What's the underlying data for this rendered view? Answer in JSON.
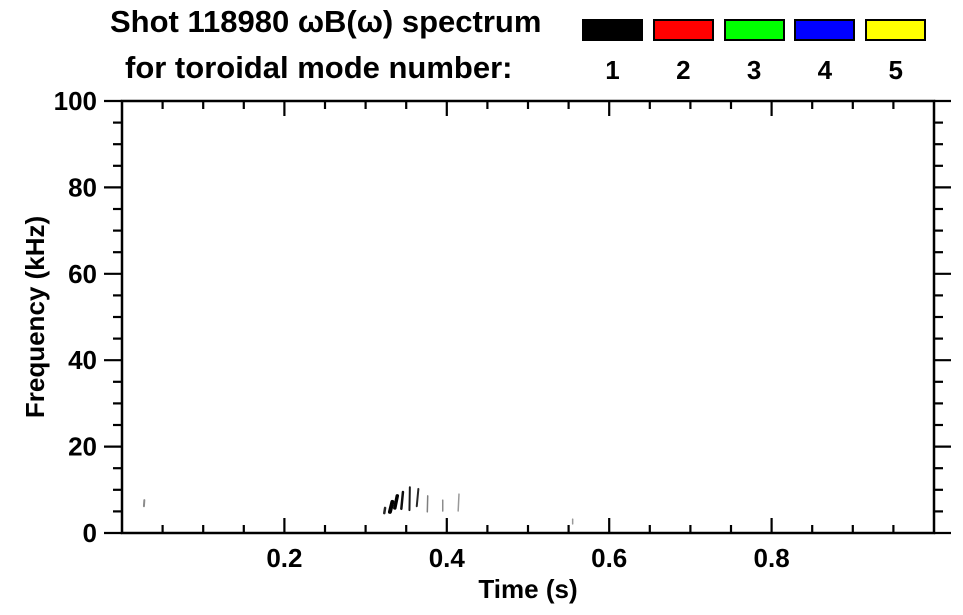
{
  "figure": {
    "title_line1": "Shot 118980 ωB(ω) spectrum",
    "title_line2": "for toroidal mode number:"
  },
  "legend": {
    "position": "top-right",
    "items": [
      {
        "label": "1",
        "color": "#000000"
      },
      {
        "label": "2",
        "color": "#ff0000"
      },
      {
        "label": "3",
        "color": "#00ff00"
      },
      {
        "label": "4",
        "color": "#0000ff"
      },
      {
        "label": "5",
        "color": "#ffff00"
      }
    ]
  },
  "chart_data": {
    "type": "scatter",
    "subtype": "mode-spectrogram",
    "title": "Shot 118980 ωB(ω) spectrum for toroidal mode number: 1 2 3 4 5",
    "xlabel": "Time (s)",
    "ylabel": "Frequency (kHz)",
    "xlim": [
      0,
      1.0
    ],
    "ylim": [
      0,
      100
    ],
    "grid": false,
    "frame_color": "#000000",
    "background": "#ffffff",
    "x_major_ticks": [
      {
        "value": 0.2,
        "label": "0.2"
      },
      {
        "value": 0.4,
        "label": "0.4"
      },
      {
        "value": 0.6,
        "label": "0.6"
      },
      {
        "value": 0.8,
        "label": "0.8"
      }
    ],
    "x_minor_step": 0.05,
    "y_major_ticks": [
      {
        "value": 0,
        "label": "0"
      },
      {
        "value": 20,
        "label": "20"
      },
      {
        "value": 40,
        "label": "40"
      },
      {
        "value": 60,
        "label": "60"
      },
      {
        "value": 80,
        "label": "80"
      },
      {
        "value": 100,
        "label": "100"
      }
    ],
    "y_minor_step": 5,
    "series": [
      {
        "name": "n=1",
        "color": "#000000",
        "points": [
          {
            "t": 0.027,
            "f_lo": 6.2,
            "f_hi": 7.6,
            "drift": 0.0005,
            "weight": 2,
            "amp": 0.45
          },
          {
            "t": 0.323,
            "f_lo": 4.6,
            "f_hi": 5.8,
            "drift": 0.001,
            "weight": 2.5,
            "amp": 0.85
          },
          {
            "t": 0.33,
            "f_lo": 4.9,
            "f_hi": 7.2,
            "drift": 0.003,
            "weight": 4,
            "amp": 1.0
          },
          {
            "t": 0.336,
            "f_lo": 5.8,
            "f_hi": 8.6,
            "drift": 0.003,
            "weight": 3.5,
            "amp": 1.0
          },
          {
            "t": 0.344,
            "f_lo": 5.6,
            "f_hi": 9.5,
            "drift": 0.002,
            "weight": 2.5,
            "amp": 0.95
          },
          {
            "t": 0.354,
            "f_lo": 5.3,
            "f_hi": 10.6,
            "drift": 0.0005,
            "weight": 2,
            "amp": 0.9
          },
          {
            "t": 0.363,
            "f_lo": 6.2,
            "f_hi": 10.2,
            "drift": 0.002,
            "weight": 2,
            "amp": 0.85
          },
          {
            "t": 0.376,
            "f_lo": 4.9,
            "f_hi": 8.6,
            "drift": 0.0005,
            "weight": 1.5,
            "amp": 0.5
          },
          {
            "t": 0.395,
            "f_lo": 5.1,
            "f_hi": 7.6,
            "drift": 0,
            "weight": 1.5,
            "amp": 0.45
          },
          {
            "t": 0.414,
            "f_lo": 5.1,
            "f_hi": 9.0,
            "drift": 0.001,
            "weight": 1.5,
            "amp": 0.4
          },
          {
            "t": 0.555,
            "f_lo": 2.1,
            "f_hi": 3.2,
            "drift": 0,
            "weight": 1.5,
            "amp": 0.4
          }
        ]
      },
      {
        "name": "n=2",
        "color": "#ff0000",
        "points": []
      },
      {
        "name": "n=3",
        "color": "#00ff00",
        "points": []
      },
      {
        "name": "n=4",
        "color": "#0000ff",
        "points": []
      },
      {
        "name": "n=5",
        "color": "#ffff00",
        "points": []
      }
    ]
  }
}
